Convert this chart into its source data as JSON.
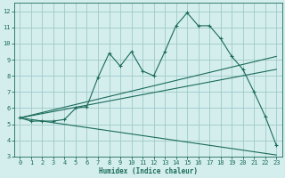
{
  "xlabel": "Humidex (Indice chaleur)",
  "bg_color": "#d4eeee",
  "grid_color": "#a0c8c8",
  "line_color": "#1a6b5a",
  "xlim": [
    -0.5,
    23.5
  ],
  "ylim": [
    3,
    12.5
  ],
  "xticks": [
    0,
    1,
    2,
    3,
    4,
    5,
    6,
    7,
    8,
    9,
    10,
    11,
    12,
    13,
    14,
    15,
    16,
    17,
    18,
    19,
    20,
    21,
    22,
    23
  ],
  "yticks": [
    3,
    4,
    5,
    6,
    7,
    8,
    9,
    10,
    11,
    12
  ],
  "curve_x": [
    0,
    1,
    2,
    3,
    4,
    5,
    6,
    7,
    8,
    9,
    10,
    11,
    12,
    13,
    14,
    15,
    16,
    17,
    18,
    19,
    20,
    21,
    22,
    23
  ],
  "curve_y": [
    5.4,
    5.2,
    5.2,
    5.2,
    5.3,
    6.0,
    6.1,
    7.9,
    9.4,
    8.6,
    9.5,
    8.3,
    8.0,
    9.5,
    11.1,
    11.9,
    11.1,
    11.1,
    10.3,
    9.2,
    8.4,
    7.0,
    5.5,
    3.7
  ],
  "line1_x": [
    0,
    23
  ],
  "line1_y": [
    5.4,
    9.2
  ],
  "line2_x": [
    0,
    23
  ],
  "line2_y": [
    5.4,
    8.4
  ],
  "line3_x": [
    0,
    23
  ],
  "line3_y": [
    5.4,
    3.1
  ],
  "tick_fontsize": 5.0,
  "xlabel_fontsize": 5.5
}
